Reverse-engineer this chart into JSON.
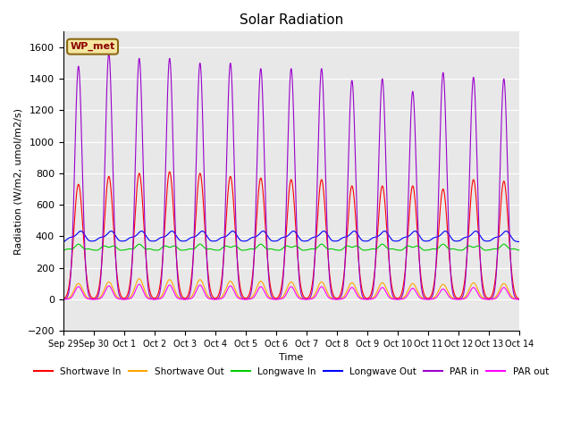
{
  "title": "Solar Radiation",
  "xlabel": "Time",
  "ylabel": "Radiation (W/m2, umol/m2/s)",
  "ylim": [
    -200,
    1700
  ],
  "yticks": [
    -200,
    0,
    200,
    400,
    600,
    800,
    1000,
    1200,
    1400,
    1600
  ],
  "bg_color": "#e8e8e8",
  "fig_color": "#ffffff",
  "station_label": "WP_met",
  "series": {
    "shortwave_in": {
      "color": "#ff0000",
      "label": "Shortwave In"
    },
    "shortwave_out": {
      "color": "#ffa500",
      "label": "Shortwave Out"
    },
    "longwave_in": {
      "color": "#00cc00",
      "label": "Longwave In"
    },
    "longwave_out": {
      "color": "#0000ff",
      "label": "Longwave Out"
    },
    "par_in": {
      "color": "#9900cc",
      "label": "PAR in"
    },
    "par_out": {
      "color": "#ff00ff",
      "label": "PAR out"
    }
  },
  "n_days": 15,
  "points_per_day": 288,
  "shortwave_in_peaks": [
    730,
    780,
    800,
    810,
    800,
    780,
    770,
    760,
    760,
    720,
    720,
    720,
    700,
    760,
    750
  ],
  "shortwave_out_peaks": [
    100,
    110,
    130,
    125,
    125,
    115,
    115,
    110,
    110,
    105,
    105,
    100,
    95,
    105,
    100
  ],
  "longwave_in_base": 310,
  "longwave_in_amp": 30,
  "longwave_out_base": 360,
  "longwave_out_amp": 65,
  "par_in_peaks": [
    1480,
    1560,
    1530,
    1530,
    1500,
    1500,
    1465,
    1465,
    1465,
    1390,
    1400,
    1320,
    1440,
    1410,
    1400
  ],
  "par_out_peaks": [
    80,
    85,
    95,
    90,
    90,
    85,
    80,
    80,
    80,
    75,
    75,
    70,
    65,
    75,
    75
  ],
  "x_tick_labels": [
    "Sep 29",
    "Sep 30",
    "Oct 1",
    "Oct 2",
    "Oct 3",
    "Oct 4",
    "Oct 5",
    "Oct 6",
    "Oct 7",
    "Oct 8",
    "Oct 9",
    "Oct 10",
    "Oct 11",
    "Oct 12",
    "Oct 13",
    "Oct 14"
  ]
}
